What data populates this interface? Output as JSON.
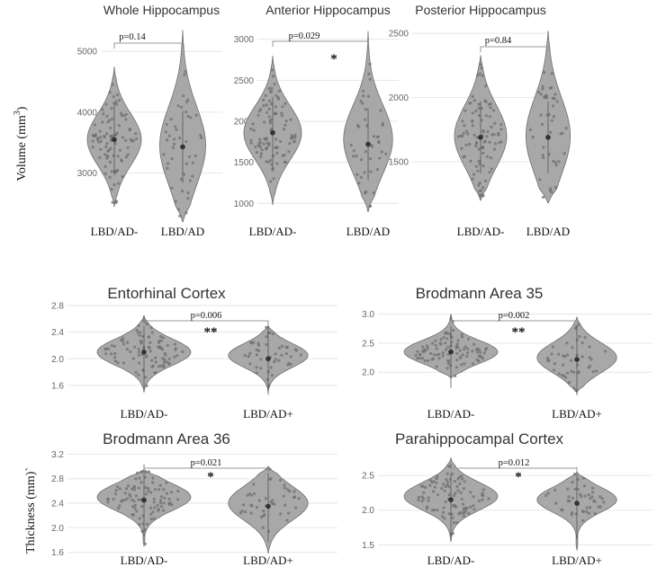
{
  "y_labels": {
    "top": {
      "text": "Volume (mm",
      "sup": "3",
      "suffix": ")"
    },
    "bottom": {
      "text": "Thickness (mm)",
      "suffix": "`"
    }
  },
  "chart_data": [
    {
      "type": "violin",
      "title": "Whole Hippocampus",
      "categories": [
        "LBD/AD-",
        "LBD/AD"
      ],
      "ylim": [
        2300,
        5400
      ],
      "yticks": [
        3000,
        4000,
        5000
      ],
      "ytick_labels": [
        "3000",
        "4000",
        "5000"
      ],
      "series": [
        {
          "name": "LBD/AD-",
          "mean": 3550,
          "min": 2450,
          "max": 4750,
          "mode": 3550,
          "spread": 430,
          "n": 95
        },
        {
          "name": "LBD/AD",
          "mean": 3430,
          "min": 2200,
          "max": 5350,
          "mode": 3450,
          "spread": 650,
          "n": 45
        }
      ],
      "p_value": "p=0.14",
      "significance": ""
    },
    {
      "type": "violin",
      "title": "Anterior Hippocampus",
      "categories": [
        "LBD/AD-",
        "LBD/AD"
      ],
      "ylim": [
        850,
        3150
      ],
      "yticks": [
        1000,
        1500,
        2000,
        2500,
        3000
      ],
      "ytick_labels": [
        "1000",
        "1500",
        "2000",
        "2500",
        "3000"
      ],
      "series": [
        {
          "name": "LBD/AD-",
          "mean": 1860,
          "min": 980,
          "max": 2800,
          "mode": 1860,
          "spread": 330,
          "n": 95
        },
        {
          "name": "LBD/AD",
          "mean": 1720,
          "min": 900,
          "max": 3100,
          "mode": 1780,
          "spread": 420,
          "n": 45
        }
      ],
      "p_value": "p=0.029",
      "significance": "*"
    },
    {
      "type": "violin",
      "title": "Posterior Hippocampus",
      "categories": [
        "LBD/AD-",
        "LBD/AD"
      ],
      "ylim": [
        1150,
        2550
      ],
      "yticks": [
        1500,
        2000,
        2500
      ],
      "ytick_labels": [
        "1500",
        "2000",
        "2500"
      ],
      "series": [
        {
          "name": "LBD/AD-",
          "mean": 1690,
          "min": 1200,
          "max": 2330,
          "mode": 1700,
          "spread": 240,
          "n": 95
        },
        {
          "name": "LBD/AD",
          "mean": 1690,
          "min": 1180,
          "max": 2520,
          "mode": 1700,
          "spread": 300,
          "n": 45
        }
      ],
      "p_value": "p=0.84",
      "significance": ""
    },
    {
      "type": "violin",
      "title": "Entorhinal Cortex",
      "categories": [
        "LBD/AD-",
        "LBD/AD+"
      ],
      "ylim": [
        1.45,
        2.8
      ],
      "yticks": [
        1.6,
        2.0,
        2.4,
        2.8
      ],
      "ytick_labels": [
        "1.6",
        "2.0",
        "2.4",
        "2.8"
      ],
      "series": [
        {
          "name": "LBD/AD-",
          "mean": 2.1,
          "min": 1.5,
          "max": 2.65,
          "mode": 2.1,
          "spread": 0.2,
          "n": 95
        },
        {
          "name": "LBD/AD+",
          "mean": 2.0,
          "min": 1.5,
          "max": 2.5,
          "mode": 2.05,
          "spread": 0.18,
          "n": 45
        }
      ],
      "p_value": "p=0.006",
      "significance": "**"
    },
    {
      "type": "violin",
      "title": "Brodmann Area 35",
      "categories": [
        "LBD/AD-",
        "LBD/AD+"
      ],
      "ylim": [
        1.6,
        3.15
      ],
      "yticks": [
        2.0,
        2.5,
        3.0
      ],
      "ytick_labels": [
        "2.0",
        "2.5",
        "3.0"
      ],
      "series": [
        {
          "name": "LBD/AD-",
          "mean": 2.35,
          "min": 1.9,
          "max": 3.0,
          "mode": 2.35,
          "spread": 0.2,
          "n": 95
        },
        {
          "name": "LBD/AD+",
          "mean": 2.22,
          "min": 1.65,
          "max": 2.95,
          "mode": 2.25,
          "spread": 0.26,
          "n": 45
        }
      ],
      "p_value": "p=0.002",
      "significance": "**"
    },
    {
      "type": "violin",
      "title": "Brodmann Area 36",
      "categories": [
        "LBD/AD-",
        "LBD/AD+"
      ],
      "ylim": [
        1.55,
        3.25
      ],
      "yticks": [
        1.6,
        2.0,
        2.4,
        2.8,
        3.2
      ],
      "ytick_labels": [
        "1.6",
        "2.0",
        "2.4",
        "2.8",
        "3.2"
      ],
      "series": [
        {
          "name": "LBD/AD-",
          "mean": 2.45,
          "min": 1.7,
          "max": 2.95,
          "mode": 2.5,
          "spread": 0.22,
          "n": 95
        },
        {
          "name": "LBD/AD+",
          "mean": 2.35,
          "min": 1.58,
          "max": 3.0,
          "mode": 2.4,
          "spread": 0.28,
          "n": 45
        }
      ],
      "p_value": "p=0.021",
      "significance": "*"
    },
    {
      "type": "violin",
      "title": "Parahippocampal Cortex",
      "categories": [
        "LBD/AD-",
        "LBD/AD+"
      ],
      "ylim": [
        1.35,
        2.85
      ],
      "yticks": [
        1.5,
        2.0,
        2.5
      ],
      "ytick_labels": [
        "1.5",
        "2.0",
        "2.5"
      ],
      "series": [
        {
          "name": "LBD/AD-",
          "mean": 2.15,
          "min": 1.55,
          "max": 2.75,
          "mode": 2.2,
          "spread": 0.2,
          "n": 95
        },
        {
          "name": "LBD/AD+",
          "mean": 2.1,
          "min": 1.42,
          "max": 2.55,
          "mode": 2.15,
          "spread": 0.18,
          "n": 45
        }
      ],
      "p_value": "p=0.012",
      "significance": "*"
    }
  ]
}
